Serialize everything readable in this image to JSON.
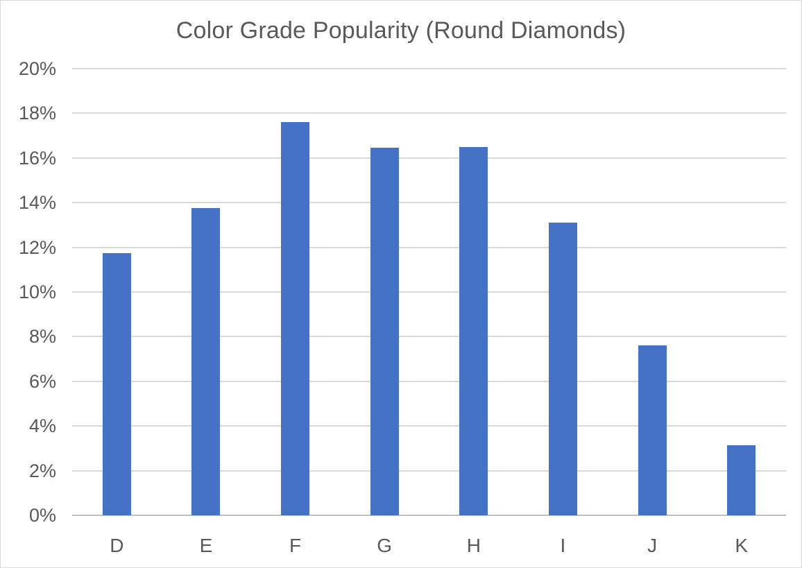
{
  "chart_data": {
    "type": "bar",
    "title": "Color Grade Popularity (Round Diamonds)",
    "categories": [
      "D",
      "E",
      "F",
      "G",
      "H",
      "I",
      "J",
      "K"
    ],
    "values": [
      11.75,
      13.75,
      17.6,
      16.45,
      16.5,
      13.1,
      7.6,
      3.15
    ],
    "xlabel": "",
    "ylabel": "",
    "ylim": [
      0,
      20
    ],
    "ytick_step": 2,
    "ytick_suffix": "%",
    "grid": true,
    "legend": "none",
    "colors": {
      "bar": "#4472C4",
      "gridline": "#d9d9d9",
      "axis_line": "#bfbfbf",
      "text": "#595959",
      "background": "#ffffff",
      "border": "#d9d9d9"
    }
  }
}
